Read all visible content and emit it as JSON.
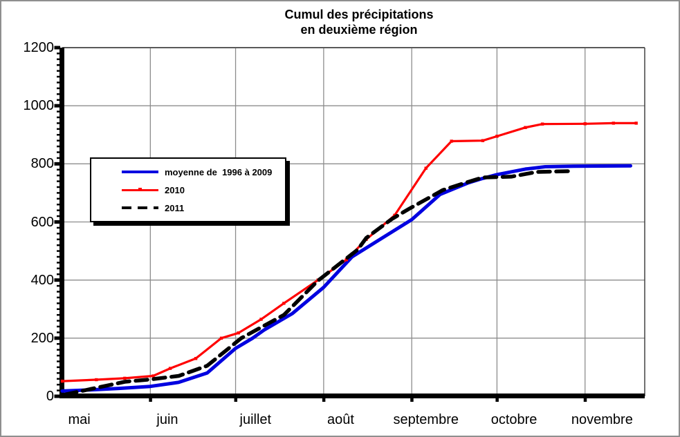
{
  "chart_data": {
    "type": "line",
    "title": "Cumul des précipitations en deuxième région",
    "title_lines": [
      "Cumul des précipitations",
      "en deuxième région"
    ],
    "grid": true,
    "legend_position": "upper-left-inside",
    "x_axis": {
      "unit": "days from May 1",
      "total_days": 205,
      "months": [
        {
          "label": "mai",
          "start_day": 0,
          "label_day": 6
        },
        {
          "label": "juin",
          "start_day": 31,
          "label_day": 37
        },
        {
          "label": "juillet",
          "start_day": 61,
          "label_day": 68
        },
        {
          "label": "août",
          "start_day": 92,
          "label_day": 98
        },
        {
          "label": "septembre",
          "start_day": 123,
          "label_day": 128
        },
        {
          "label": "octobre",
          "start_day": 153,
          "label_day": 159
        },
        {
          "label": "novembre",
          "start_day": 184,
          "label_day": 190
        }
      ]
    },
    "y_axis": {
      "min": 0,
      "max": 1200,
      "major_step": 200,
      "minor_step": 20,
      "tick_labels": [
        "0",
        "200",
        "400",
        "600",
        "800",
        "1000",
        "1200"
      ]
    },
    "series": [
      {
        "name": "moyenne de  1996 à 2009",
        "slug": "moyenne-1996-2009",
        "color": "#0000e0",
        "style": "solid",
        "width": 5,
        "markers": false,
        "points": [
          [
            0,
            18
          ],
          [
            10,
            22
          ],
          [
            20,
            27
          ],
          [
            31,
            34
          ],
          [
            41,
            48
          ],
          [
            51,
            80
          ],
          [
            61,
            165
          ],
          [
            67,
            200
          ],
          [
            71,
            228
          ],
          [
            81,
            285
          ],
          [
            92,
            375
          ],
          [
            102,
            480
          ],
          [
            113,
            547
          ],
          [
            123,
            608
          ],
          [
            133,
            695
          ],
          [
            143,
            735
          ],
          [
            148,
            750
          ],
          [
            153,
            763
          ],
          [
            163,
            782
          ],
          [
            170,
            790
          ],
          [
            180,
            792
          ],
          [
            200,
            793
          ]
        ]
      },
      {
        "name": "2010",
        "slug": "2010",
        "color": "#ff0000",
        "style": "solid",
        "width": 3.2,
        "markers": true,
        "points": [
          [
            0,
            52
          ],
          [
            12,
            57
          ],
          [
            22,
            62
          ],
          [
            32,
            70
          ],
          [
            38,
            96
          ],
          [
            47,
            130
          ],
          [
            56,
            200
          ],
          [
            62,
            218
          ],
          [
            70,
            265
          ],
          [
            78,
            320
          ],
          [
            90,
            400
          ],
          [
            100,
            470
          ],
          [
            107,
            540
          ],
          [
            117,
            623
          ],
          [
            128,
            785
          ],
          [
            137,
            878
          ],
          [
            148,
            880
          ],
          [
            153,
            895
          ],
          [
            163,
            925
          ],
          [
            169,
            937
          ],
          [
            184,
            938
          ],
          [
            194,
            940
          ],
          [
            202,
            940
          ]
        ]
      },
      {
        "name": "2011",
        "slug": "2011",
        "color": "#000000",
        "style": "dashed",
        "width": 5.5,
        "markers": false,
        "points": [
          [
            1,
            6
          ],
          [
            10,
            25
          ],
          [
            22,
            50
          ],
          [
            31,
            58
          ],
          [
            41,
            70
          ],
          [
            51,
            105
          ],
          [
            63,
            200
          ],
          [
            78,
            280
          ],
          [
            90,
            398
          ],
          [
            104,
            505
          ],
          [
            107,
            545
          ],
          [
            116,
            610
          ],
          [
            122,
            645
          ],
          [
            134,
            710
          ],
          [
            143,
            738
          ],
          [
            148,
            753
          ],
          [
            158,
            756
          ],
          [
            167,
            772
          ],
          [
            179,
            775
          ]
        ]
      }
    ],
    "colors": {
      "gridline": "#8c8c8c",
      "axis": "#000000",
      "plot_border_top": "#595959",
      "plot_border_right": "#404040",
      "background": "#ffffff"
    }
  }
}
